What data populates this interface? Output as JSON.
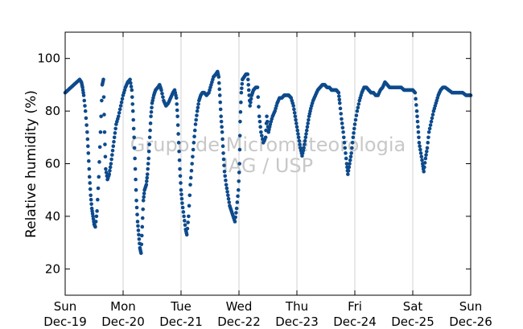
{
  "chart_data": {
    "type": "scatter",
    "title": "",
    "xlabel": "",
    "ylabel": "Relative humidity (%)",
    "xlim": [
      "2021-12-19 00:00",
      "2021-12-26 00:00"
    ],
    "ylim": [
      10,
      110
    ],
    "grid": "vertical lines at day boundaries",
    "marker_color": "#0d4a8c",
    "x_ticks": [
      {
        "day": "Sun",
        "date": "Dec-19"
      },
      {
        "day": "Mon",
        "date": "Dec-20"
      },
      {
        "day": "Tue",
        "date": "Dec-21"
      },
      {
        "day": "Wed",
        "date": "Dec-22"
      },
      {
        "day": "Thu",
        "date": "Dec-23"
      },
      {
        "day": "Fri",
        "date": "Dec-24"
      },
      {
        "day": "Sat",
        "date": "Dec-25"
      },
      {
        "day": "Sun",
        "date": "Dec-26"
      }
    ],
    "y_ticks": [
      20,
      40,
      60,
      80,
      100
    ],
    "watermark": [
      "Grupo de Micrometeorologia",
      "IAG / USP"
    ],
    "series": [
      {
        "x_unit": "days since Dec-19 00:00",
        "points": [
          [
            0.0,
            87
          ],
          [
            0.05,
            88
          ],
          [
            0.1,
            89
          ],
          [
            0.15,
            90
          ],
          [
            0.2,
            91
          ],
          [
            0.25,
            92
          ],
          [
            0.28,
            91
          ],
          [
            0.3,
            89
          ],
          [
            0.32,
            86
          ],
          [
            0.35,
            80
          ],
          [
            0.38,
            72
          ],
          [
            0.4,
            64
          ],
          [
            0.42,
            55
          ],
          [
            0.44,
            48
          ],
          [
            0.46,
            43
          ],
          [
            0.48,
            40
          ],
          [
            0.5,
            37
          ],
          [
            0.52,
            36
          ],
          [
            0.55,
            42
          ],
          [
            0.58,
            55
          ],
          [
            0.61,
            72
          ],
          [
            0.64,
            90
          ],
          [
            0.66,
            92
          ],
          [
            0.68,
            72
          ],
          [
            0.7,
            58
          ],
          [
            0.73,
            54
          ],
          [
            0.76,
            56
          ],
          [
            0.79,
            60
          ],
          [
            0.82,
            65
          ],
          [
            0.85,
            70
          ],
          [
            0.88,
            75
          ],
          [
            0.92,
            78
          ],
          [
            0.96,
            82
          ],
          [
            1.0,
            86
          ],
          [
            1.04,
            89
          ],
          [
            1.08,
            91
          ],
          [
            1.12,
            92
          ],
          [
            1.15,
            88
          ],
          [
            1.17,
            80
          ],
          [
            1.19,
            70
          ],
          [
            1.21,
            58
          ],
          [
            1.23,
            46
          ],
          [
            1.25,
            38
          ],
          [
            1.27,
            33
          ],
          [
            1.29,
            28
          ],
          [
            1.31,
            26
          ],
          [
            1.33,
            36
          ],
          [
            1.35,
            46
          ],
          [
            1.37,
            50
          ],
          [
            1.4,
            52
          ],
          [
            1.42,
            56
          ],
          [
            1.44,
            62
          ],
          [
            1.46,
            70
          ],
          [
            1.48,
            78
          ],
          [
            1.5,
            83
          ],
          [
            1.53,
            86
          ],
          [
            1.56,
            88
          ],
          [
            1.6,
            89
          ],
          [
            1.63,
            90
          ],
          [
            1.66,
            88
          ],
          [
            1.7,
            84
          ],
          [
            1.74,
            82
          ],
          [
            1.78,
            83
          ],
          [
            1.82,
            85
          ],
          [
            1.86,
            87
          ],
          [
            1.89,
            88
          ],
          [
            1.92,
            85
          ],
          [
            1.94,
            78
          ],
          [
            1.96,
            68
          ],
          [
            1.98,
            58
          ],
          [
            2.0,
            50
          ],
          [
            2.02,
            45
          ],
          [
            2.05,
            40
          ],
          [
            2.08,
            35
          ],
          [
            2.1,
            33
          ],
          [
            2.13,
            40
          ],
          [
            2.16,
            52
          ],
          [
            2.19,
            60
          ],
          [
            2.22,
            68
          ],
          [
            2.25,
            75
          ],
          [
            2.28,
            80
          ],
          [
            2.31,
            84
          ],
          [
            2.34,
            86
          ],
          [
            2.37,
            87
          ],
          [
            2.4,
            87
          ],
          [
            2.44,
            86
          ],
          [
            2.48,
            87
          ],
          [
            2.52,
            90
          ],
          [
            2.56,
            93
          ],
          [
            2.6,
            94
          ],
          [
            2.63,
            95
          ],
          [
            2.65,
            93
          ],
          [
            2.67,
            86
          ],
          [
            2.69,
            78
          ],
          [
            2.71,
            72
          ],
          [
            2.73,
            64
          ],
          [
            2.75,
            57
          ],
          [
            2.78,
            52
          ],
          [
            2.81,
            48
          ],
          [
            2.84,
            44
          ],
          [
            2.87,
            42
          ],
          [
            2.9,
            40
          ],
          [
            2.93,
            38
          ],
          [
            2.96,
            43
          ],
          [
            2.99,
            50
          ],
          [
            3.01,
            60
          ],
          [
            3.02,
            76
          ],
          [
            3.04,
            87
          ],
          [
            3.06,
            92
          ],
          [
            3.09,
            93
          ],
          [
            3.12,
            94
          ],
          [
            3.15,
            94
          ],
          [
            3.17,
            88
          ],
          [
            3.19,
            82
          ],
          [
            3.22,
            86
          ],
          [
            3.25,
            88
          ],
          [
            3.29,
            89
          ],
          [
            3.32,
            89
          ],
          [
            3.35,
            78
          ],
          [
            3.38,
            72
          ],
          [
            3.42,
            68
          ],
          [
            3.46,
            70
          ],
          [
            3.48,
            78
          ],
          [
            3.51,
            72
          ],
          [
            3.54,
            75
          ],
          [
            3.58,
            78
          ],
          [
            3.62,
            80
          ],
          [
            3.66,
            83
          ],
          [
            3.7,
            85
          ],
          [
            3.74,
            85
          ],
          [
            3.78,
            86
          ],
          [
            3.82,
            86
          ],
          [
            3.86,
            86
          ],
          [
            3.9,
            85
          ],
          [
            3.94,
            82
          ],
          [
            3.97,
            78
          ],
          [
            4.0,
            74
          ],
          [
            4.03,
            70
          ],
          [
            4.06,
            66
          ],
          [
            4.09,
            63
          ],
          [
            4.12,
            66
          ],
          [
            4.15,
            70
          ],
          [
            4.18,
            74
          ],
          [
            4.21,
            78
          ],
          [
            4.24,
            81
          ],
          [
            4.28,
            84
          ],
          [
            4.32,
            86
          ],
          [
            4.36,
            88
          ],
          [
            4.4,
            89
          ],
          [
            4.44,
            90
          ],
          [
            4.48,
            90
          ],
          [
            4.52,
            89
          ],
          [
            4.56,
            89
          ],
          [
            4.6,
            88
          ],
          [
            4.64,
            88
          ],
          [
            4.68,
            88
          ],
          [
            4.72,
            87
          ],
          [
            4.74,
            83
          ],
          [
            4.77,
            77
          ],
          [
            4.8,
            72
          ],
          [
            4.83,
            66
          ],
          [
            4.86,
            60
          ],
          [
            4.88,
            56
          ],
          [
            4.91,
            60
          ],
          [
            4.94,
            64
          ],
          [
            4.97,
            70
          ],
          [
            5.0,
            75
          ],
          [
            5.04,
            80
          ],
          [
            5.08,
            84
          ],
          [
            5.12,
            87
          ],
          [
            5.16,
            89
          ],
          [
            5.2,
            89
          ],
          [
            5.24,
            88
          ],
          [
            5.28,
            87
          ],
          [
            5.32,
            87
          ],
          [
            5.36,
            86
          ],
          [
            5.4,
            86
          ],
          [
            5.44,
            88
          ],
          [
            5.48,
            89
          ],
          [
            5.52,
            91
          ],
          [
            5.56,
            90
          ],
          [
            5.6,
            89
          ],
          [
            5.65,
            89
          ],
          [
            5.7,
            89
          ],
          [
            5.75,
            89
          ],
          [
            5.8,
            89
          ],
          [
            5.85,
            88
          ],
          [
            5.9,
            88
          ],
          [
            5.95,
            88
          ],
          [
            6.0,
            88
          ],
          [
            6.04,
            87
          ],
          [
            6.07,
            80
          ],
          [
            6.09,
            74
          ],
          [
            6.11,
            68
          ],
          [
            6.14,
            64
          ],
          [
            6.17,
            60
          ],
          [
            6.19,
            57
          ],
          [
            6.22,
            62
          ],
          [
            6.25,
            66
          ],
          [
            6.28,
            72
          ],
          [
            6.32,
            76
          ],
          [
            6.36,
            80
          ],
          [
            6.4,
            83
          ],
          [
            6.44,
            86
          ],
          [
            6.48,
            88
          ],
          [
            6.52,
            89
          ],
          [
            6.56,
            89
          ],
          [
            6.62,
            88
          ],
          [
            6.68,
            87
          ],
          [
            6.74,
            87
          ],
          [
            6.8,
            87
          ],
          [
            6.86,
            87
          ],
          [
            6.92,
            86
          ],
          [
            6.96,
            86
          ],
          [
            7.0,
            86
          ]
        ]
      }
    ]
  }
}
